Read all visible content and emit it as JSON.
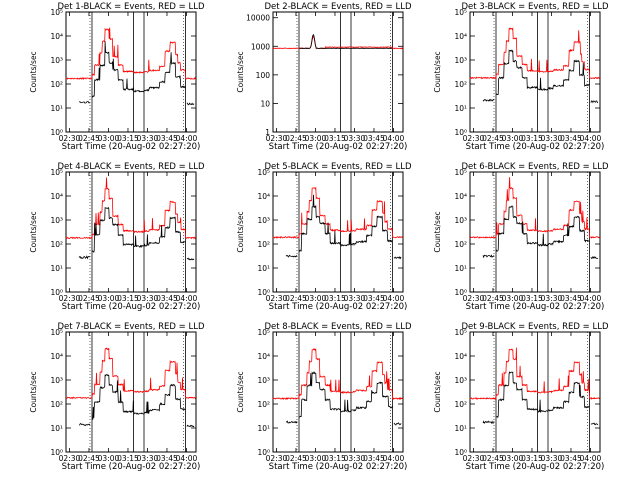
{
  "chart_data": {
    "type": "line",
    "xlabel": "Start Time (20-Aug-02 02:27:20)",
    "x_ticks": [
      "02:30",
      "02:45",
      "03:00",
      "03:15",
      "03:30",
      "03:45",
      "04:00"
    ],
    "xlim_minutes": [
      0,
      100
    ],
    "y_scale": "log",
    "legend": "title",
    "colors": {
      "events": "#000000",
      "lld": "#ff0000"
    },
    "marker_times_min": [
      20,
      52,
      60,
      92
    ],
    "panels": [
      {
        "title": "Det 1-BLACK = Events, RED = LLD",
        "ylabel": "Counts/sec",
        "y_ticks": [
          "10⁰",
          "10¹",
          "10²",
          "10³",
          "10⁴",
          "10⁵"
        ],
        "ylim_exp": [
          0,
          5
        ],
        "profile": "flare",
        "gap": [
          20,
          92
        ],
        "lld_base": 170,
        "ev_base": 50,
        "peak_scale": 1.0
      },
      {
        "title": "Det 2-BLACK = Events, RED = LLD",
        "ylabel": "Counts/sec",
        "y_ticks": [
          "1",
          "10",
          "100",
          "1000",
          "10000"
        ],
        "ylim_exp": [
          0,
          4.2
        ],
        "profile": "flat",
        "gap": [
          20,
          92
        ],
        "lld_base": 850,
        "ev_base": 850,
        "peak_scale": 1.0
      },
      {
        "title": "Det 3-BLACK = Events, RED = LLD",
        "ylabel": "Counts/sec",
        "y_ticks": [
          "10⁰",
          "10¹",
          "10²",
          "10³",
          "10⁴",
          "10⁵"
        ],
        "ylim_exp": [
          0,
          5
        ],
        "profile": "flare",
        "gap": [
          20,
          92
        ],
        "lld_base": 180,
        "ev_base": 60,
        "peak_scale": 1.0
      },
      {
        "title": "Det 4-BLACK = Events, RED = LLD",
        "ylabel": "Counts/sec",
        "y_ticks": [
          "10⁰",
          "10¹",
          "10²",
          "10³",
          "10⁴",
          "10⁵"
        ],
        "ylim_exp": [
          0,
          5
        ],
        "profile": "flare",
        "gap": [
          20,
          92
        ],
        "lld_base": 180,
        "ev_base": 80,
        "peak_scale": 1.0
      },
      {
        "title": "Det 5-BLACK = Events, RED = LLD",
        "ylabel": "Counts/sec",
        "y_ticks": [
          "10⁰",
          "10¹",
          "10²",
          "10³",
          "10⁴",
          "10⁵"
        ],
        "ylim_exp": [
          0,
          5
        ],
        "profile": "flare",
        "gap": [
          20,
          92
        ],
        "lld_base": 190,
        "ev_base": 90,
        "peak_scale": 1.0
      },
      {
        "title": "Det 6-BLACK = Events, RED = LLD",
        "ylabel": "Counts/sec",
        "y_ticks": [
          "10⁰",
          "10¹",
          "10²",
          "10³",
          "10⁴",
          "10⁵"
        ],
        "ylim_exp": [
          0,
          5
        ],
        "profile": "flare",
        "gap": [
          20,
          92
        ],
        "lld_base": 190,
        "ev_base": 90,
        "peak_scale": 1.0
      },
      {
        "title": "Det 7-BLACK = Events, RED = LLD",
        "ylabel": "Counts/sec",
        "y_ticks": [
          "10⁰",
          "10¹",
          "10²",
          "10³",
          "10⁴",
          "10⁵"
        ],
        "ylim_exp": [
          0,
          5
        ],
        "profile": "flare",
        "gap": [
          20,
          92
        ],
        "lld_base": 180,
        "ev_base": 40,
        "peak_scale": 1.0
      },
      {
        "title": "Det 8-BLACK = Events, RED = LLD",
        "ylabel": "Counts/sec",
        "y_ticks": [
          "10⁰",
          "10¹",
          "10²",
          "10³",
          "10⁴",
          "10⁵"
        ],
        "ylim_exp": [
          0,
          5
        ],
        "profile": "flare",
        "gap": [
          20,
          92
        ],
        "lld_base": 170,
        "ev_base": 50,
        "peak_scale": 1.0
      },
      {
        "title": "Det 9-BLACK = Events, RED = LLD",
        "ylabel": "Counts/sec",
        "y_ticks": [
          "10⁰",
          "10¹",
          "10²",
          "10³",
          "10⁴",
          "10⁵"
        ],
        "ylim_exp": [
          0,
          5
        ],
        "profile": "flare",
        "gap": [
          20,
          92
        ],
        "lld_base": 170,
        "ev_base": 50,
        "peak_scale": 1.0
      }
    ]
  }
}
